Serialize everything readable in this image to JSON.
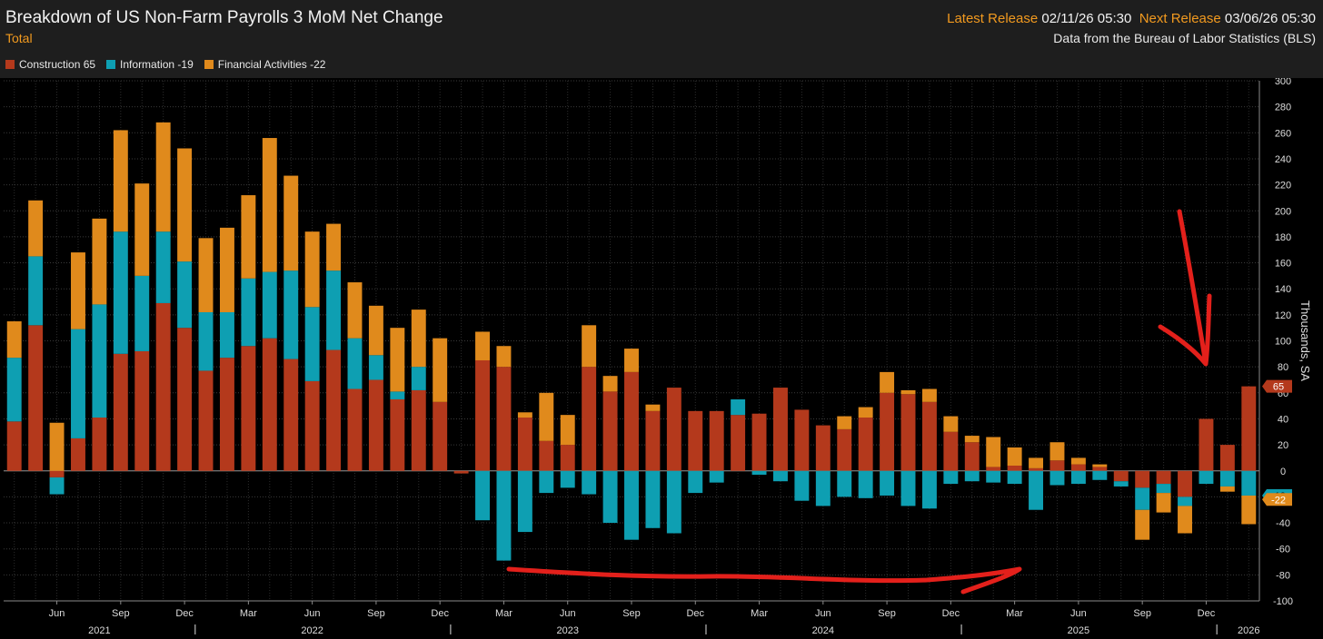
{
  "header": {
    "title": "Breakdown of US Non-Farm Payrolls 3 MoM Net Change",
    "subtitle": "Total",
    "latest_label": "Latest Release",
    "latest_value": "02/11/26 05:30",
    "next_label": "Next Release",
    "next_value": "03/06/26 05:30",
    "source": "Data from the Bureau of Labor Statistics (BLS)"
  },
  "legend": [
    {
      "label": "Construction 65",
      "color": "#b4391c"
    },
    {
      "label": "Information -19",
      "color": "#0e9fb2"
    },
    {
      "label": "Financial Activities -22",
      "color": "#e08a1c"
    }
  ],
  "chart_data": {
    "type": "bar",
    "stacked": true,
    "ylabel": "Thousands, SA",
    "ylim": [
      -100,
      300
    ],
    "yticks": [
      -100,
      -80,
      -60,
      -40,
      -20,
      0,
      20,
      40,
      60,
      80,
      100,
      120,
      140,
      160,
      180,
      200,
      220,
      240,
      260,
      280,
      300
    ],
    "grid": true,
    "series": [
      {
        "name": "Construction",
        "color": "#b4391c",
        "last": "65",
        "values": [
          38,
          112,
          -5,
          25,
          41,
          90,
          92,
          129,
          110,
          77,
          87,
          96,
          102,
          86,
          69,
          93,
          63,
          70,
          55,
          62,
          53,
          -2,
          85,
          80,
          41,
          23,
          20,
          80,
          61,
          76,
          46,
          64,
          46,
          46,
          43,
          44,
          64,
          47,
          35,
          32,
          41,
          60,
          59,
          53,
          30,
          22,
          3,
          4,
          2,
          8,
          5,
          3,
          -8,
          -13,
          -10,
          -20,
          40,
          20,
          65
        ]
      },
      {
        "name": "Information",
        "color": "#0e9fb2",
        "last": "-19",
        "values": [
          49,
          53,
          -13,
          84,
          87,
          94,
          58,
          55,
          51,
          45,
          35,
          52,
          51,
          68,
          57,
          61,
          39,
          19,
          6,
          18,
          0,
          0,
          -38,
          -69,
          -47,
          -17,
          -13,
          -18,
          -40,
          -53,
          -44,
          -48,
          -17,
          -9,
          12,
          -3,
          -8,
          -23,
          -27,
          -20,
          -21,
          -19,
          -27,
          -29,
          -10,
          -8,
          -9,
          -10,
          -30,
          -11,
          -10,
          -7,
          -4,
          -17,
          -7,
          -7,
          -10,
          -12,
          -19
        ]
      },
      {
        "name": "Financial Activities",
        "color": "#e08a1c",
        "last": "-22",
        "values": [
          28,
          43,
          37,
          59,
          66,
          78,
          71,
          84,
          87,
          57,
          65,
          64,
          103,
          73,
          58,
          36,
          43,
          38,
          49,
          44,
          49,
          0,
          22,
          16,
          4,
          37,
          23,
          32,
          12,
          18,
          5,
          0,
          0,
          0,
          0,
          0,
          0,
          0,
          0,
          10,
          8,
          16,
          3,
          10,
          12,
          5,
          23,
          14,
          8,
          14,
          5,
          2,
          0,
          -23,
          -15,
          -21,
          0,
          -4,
          -22
        ]
      }
    ],
    "x_month_labels": [
      {
        "i": 2,
        "label": "Jun"
      },
      {
        "i": 5,
        "label": "Sep"
      },
      {
        "i": 8,
        "label": "Dec"
      },
      {
        "i": 11,
        "label": "Mar"
      },
      {
        "i": 14,
        "label": "Jun"
      },
      {
        "i": 17,
        "label": "Sep"
      },
      {
        "i": 20,
        "label": "Dec"
      },
      {
        "i": 23,
        "label": "Mar"
      },
      {
        "i": 26,
        "label": "Jun"
      },
      {
        "i": 29,
        "label": "Sep"
      },
      {
        "i": 32,
        "label": "Dec"
      },
      {
        "i": 35,
        "label": "Mar"
      },
      {
        "i": 38,
        "label": "Jun"
      },
      {
        "i": 41,
        "label": "Sep"
      },
      {
        "i": 44,
        "label": "Dec"
      },
      {
        "i": 47,
        "label": "Mar"
      },
      {
        "i": 50,
        "label": "Jun"
      },
      {
        "i": 53,
        "label": "Sep"
      },
      {
        "i": 56,
        "label": "Dec"
      }
    ],
    "x_year_labels": [
      {
        "i": 4,
        "label": "2021"
      },
      {
        "i": 14,
        "label": "2022"
      },
      {
        "i": 26,
        "label": "2023"
      },
      {
        "i": 38,
        "label": "2024"
      },
      {
        "i": 50,
        "label": "2025"
      },
      {
        "i": 58,
        "label": "2026"
      }
    ],
    "x_year_dividers": [
      8.5,
      20.5,
      32.5,
      44.5,
      56.5
    ],
    "last_value_labels": [
      "65",
      "-19",
      "-22"
    ]
  }
}
